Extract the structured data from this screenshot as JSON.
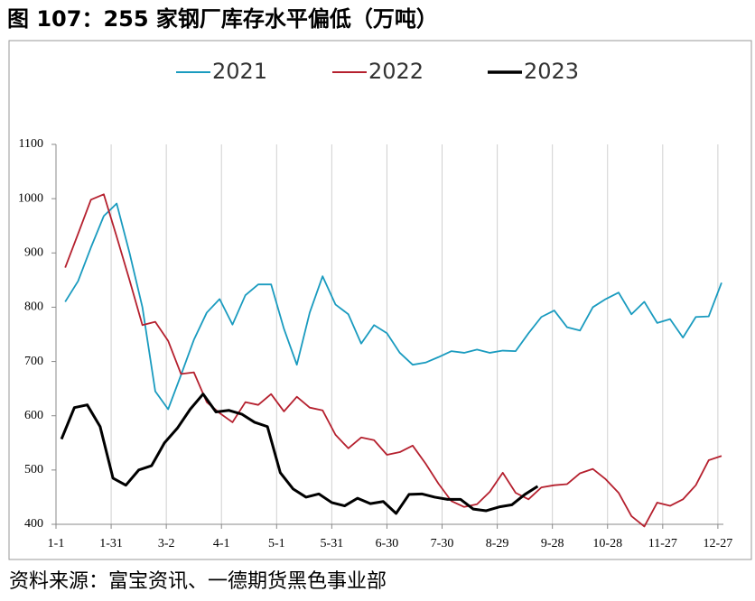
{
  "chart_data": {
    "type": "line",
    "title": "图 107：255 家钢厂库存水平偏低（万吨）",
    "source": "资料来源：富宝资讯、一德期货黑色事业部",
    "xlim": [
      0,
      363
    ],
    "ylim": [
      400,
      1100
    ],
    "xticks": [
      {
        "value": 0,
        "label": "1-1"
      },
      {
        "value": 30,
        "label": "1-31"
      },
      {
        "value": 60,
        "label": "3-2"
      },
      {
        "value": 90,
        "label": "4-1"
      },
      {
        "value": 120,
        "label": "5-1"
      },
      {
        "value": 150,
        "label": "5-31"
      },
      {
        "value": 180,
        "label": "6-30"
      },
      {
        "value": 210,
        "label": "7-30"
      },
      {
        "value": 240,
        "label": "8-29"
      },
      {
        "value": 270,
        "label": "9-28"
      },
      {
        "value": 300,
        "label": "10-28"
      },
      {
        "value": 330,
        "label": "11-27"
      },
      {
        "value": 360,
        "label": "12-27"
      }
    ],
    "yticks": [
      400,
      500,
      600,
      700,
      800,
      900,
      1000,
      1100
    ],
    "grid": "x",
    "series": [
      {
        "name": "2021",
        "color": "#1a9bbf",
        "x": [
          5,
          12,
          19,
          26,
          33,
          40,
          47,
          54,
          61,
          68,
          75,
          82,
          89,
          96,
          103,
          110,
          117,
          124,
          131,
          138,
          145,
          152,
          159,
          166,
          173,
          180,
          187,
          194,
          201,
          208,
          215,
          222,
          229,
          236,
          243,
          250,
          257,
          264,
          271,
          278,
          285,
          292,
          299,
          306,
          313,
          320,
          327,
          334,
          341,
          348,
          355,
          362
        ],
        "values": [
          810,
          848,
          910,
          968,
          991,
          900,
          800,
          645,
          612,
          675,
          740,
          790,
          815,
          768,
          822,
          842,
          842,
          760,
          694,
          790,
          857,
          805,
          787,
          733,
          767,
          752,
          716,
          694,
          698,
          708,
          719,
          716,
          722,
          716,
          720,
          719,
          752,
          782,
          794,
          763,
          757,
          800,
          815,
          827,
          787,
          810,
          771,
          778,
          744,
          782,
          783,
          845
        ]
      },
      {
        "name": "2022",
        "color": "#b5202e",
        "x": [
          5,
          12,
          19,
          26,
          33,
          40,
          47,
          54,
          61,
          68,
          75,
          82,
          89,
          96,
          103,
          110,
          117,
          124,
          131,
          138,
          145,
          152,
          159,
          166,
          173,
          180,
          187,
          194,
          201,
          208,
          215,
          222,
          229,
          236,
          243,
          250,
          257,
          264,
          271,
          278,
          285,
          292,
          299,
          306,
          313,
          320,
          327,
          334,
          341,
          348,
          355,
          362
        ],
        "values": [
          873,
          935,
          998,
          1008,
          930,
          850,
          767,
          773,
          738,
          677,
          680,
          625,
          605,
          588,
          625,
          620,
          640,
          608,
          635,
          615,
          610,
          565,
          540,
          560,
          555,
          528,
          533,
          545,
          512,
          475,
          443,
          432,
          437,
          460,
          495,
          458,
          446,
          468,
          472,
          474,
          494,
          502,
          483,
          458,
          415,
          396,
          440,
          434,
          446,
          472,
          518,
          526
        ]
      },
      {
        "name": "2023",
        "color": "#000000",
        "x": [
          3,
          10,
          17,
          24,
          31,
          38,
          45,
          52,
          59,
          66,
          73,
          80,
          87,
          94,
          101,
          108,
          115,
          122,
          129,
          136,
          143,
          150,
          157,
          164,
          171,
          178,
          185,
          192,
          199,
          206,
          213,
          220,
          227,
          234,
          241,
          248,
          255,
          262
        ],
        "values": [
          557,
          615,
          620,
          580,
          485,
          472,
          500,
          508,
          550,
          577,
          612,
          640,
          607,
          610,
          603,
          588,
          580,
          495,
          465,
          450,
          456,
          440,
          434,
          448,
          438,
          442,
          420,
          455,
          456,
          450,
          446,
          446,
          428,
          425,
          432,
          436,
          455,
          470
        ]
      }
    ]
  }
}
